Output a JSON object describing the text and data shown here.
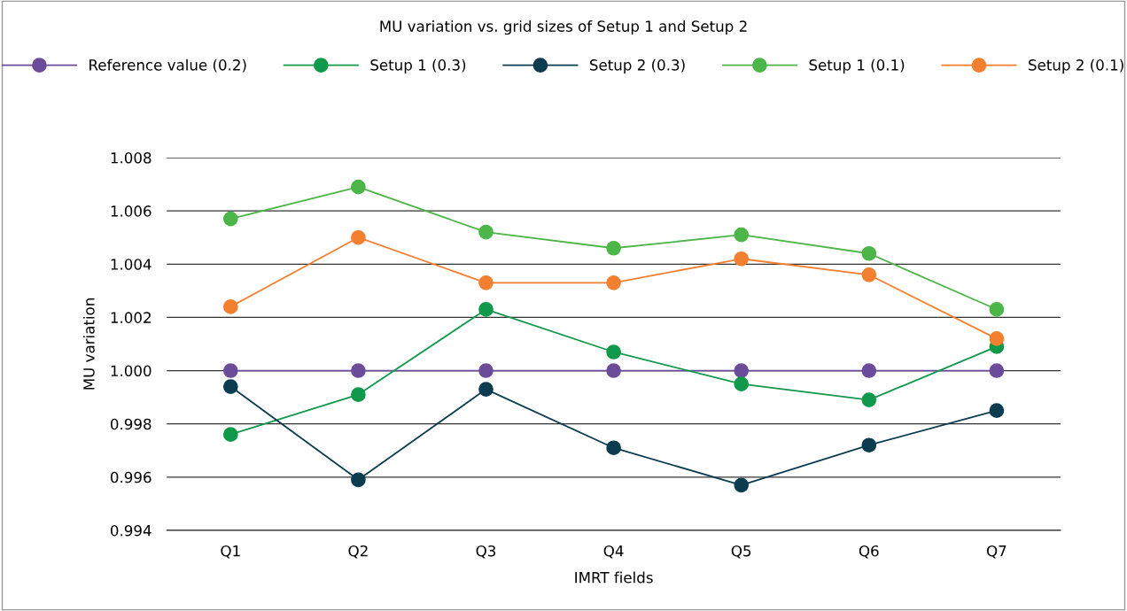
{
  "chart_data": {
    "type": "line",
    "title": "MU variation vs. grid sizes of Setup 1 and Setup 2",
    "xlabel": "IMRT fields",
    "ylabel": "MU variation",
    "categories": [
      "Q1",
      "Q2",
      "Q3",
      "Q4",
      "Q5",
      "Q6",
      "Q7"
    ],
    "series": [
      {
        "name": "Reference value (0.2)",
        "color": "#6b4c9a",
        "values": [
          1.0,
          1.0,
          1.0,
          1.0,
          1.0,
          1.0,
          1.0
        ]
      },
      {
        "name": "Setup 1 (0.3)",
        "color": "#10994a",
        "values": [
          0.9976,
          0.9991,
          1.0023,
          1.0007,
          0.9995,
          0.9989,
          1.0009
        ]
      },
      {
        "name": "Setup 2 (0.3)",
        "color": "#0b3c50",
        "values": [
          0.9994,
          0.9959,
          0.9993,
          0.9971,
          0.9957,
          0.9972,
          0.9985
        ]
      },
      {
        "name": "Setup 1 (0.1)",
        "color": "#4cb648",
        "values": [
          1.0057,
          1.0069,
          1.0052,
          1.0046,
          1.0051,
          1.0044,
          1.0023
        ]
      },
      {
        "name": "Setup 2 (0.1)",
        "color": "#f37f30",
        "values": [
          1.0024,
          1.005,
          1.0033,
          1.0033,
          1.0042,
          1.0036,
          1.0012
        ]
      }
    ],
    "ylim": [
      0.994,
      1.008
    ],
    "yticks": [
      {
        "value": 0.994,
        "label": "0.994"
      },
      {
        "value": 0.996,
        "label": "0.996"
      },
      {
        "value": 0.998,
        "label": "0.998"
      },
      {
        "value": 1.0,
        "label": "1.000"
      },
      {
        "value": 1.002,
        "label": "1.002"
      },
      {
        "value": 1.004,
        "label": "1.004"
      },
      {
        "value": 1.006,
        "label": "1.006"
      },
      {
        "value": 1.008,
        "label": "1.008"
      }
    ],
    "grid": "y",
    "legend": "top",
    "marker": "circle",
    "line_style": "solid"
  }
}
